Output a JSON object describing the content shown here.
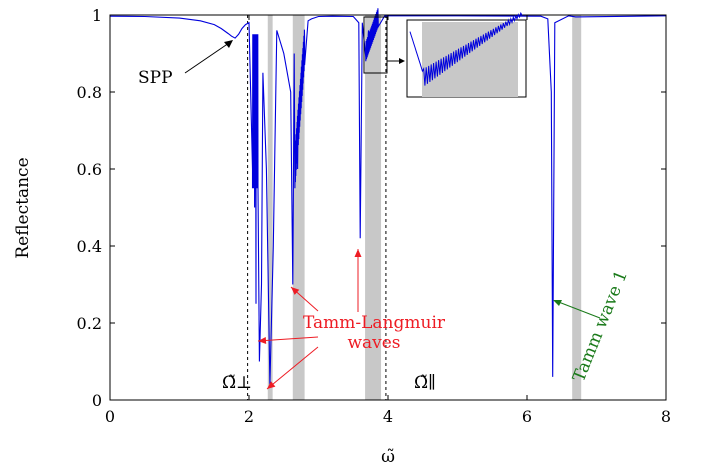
{
  "chart_data": {
    "type": "line",
    "xlabel": "ω̃",
    "ylabel": "Reflectance",
    "xlim": [
      0,
      8
    ],
    "ylim": [
      0,
      1
    ],
    "x_ticks": [
      "0",
      "2",
      "4",
      "6",
      "8"
    ],
    "y_ticks": [
      "0",
      "0.2",
      "0.4",
      "0.6",
      "0.8",
      "1"
    ],
    "grid": false,
    "line_color": "#0000dd",
    "band_color": "#c8c8c8",
    "gray_bands": [
      [
        2.27,
        2.34
      ],
      [
        2.63,
        2.8
      ],
      [
        3.67,
        3.9
      ],
      [
        6.65,
        6.78
      ]
    ],
    "dashed_lines": [
      {
        "x": 1.98,
        "label": "Ω̃⊥"
      },
      {
        "x": 3.97,
        "label": "Ω̃∥"
      }
    ],
    "series": [
      {
        "x": [
          0.0,
          0.5,
          1.0,
          1.3,
          1.5,
          1.6,
          1.7,
          1.75,
          1.8,
          1.85,
          1.9,
          1.95,
          2.0,
          2.05,
          2.08,
          2.1,
          2.15,
          2.18,
          2.2,
          2.25,
          2.3,
          2.35,
          2.4,
          2.5,
          2.6,
          2.63,
          2.65,
          2.7,
          2.8,
          2.85,
          2.9,
          3.0,
          3.2,
          3.5,
          3.58,
          3.6,
          3.63,
          3.68,
          3.72,
          3.8,
          3.85,
          3.95,
          4.0,
          5.0,
          6.2,
          6.3,
          6.35,
          6.37,
          6.4,
          6.6,
          6.7,
          8.0
        ],
        "y": [
          0.997,
          0.996,
          0.992,
          0.985,
          0.975,
          0.965,
          0.952,
          0.945,
          0.94,
          0.95,
          0.965,
          0.975,
          0.98,
          0.6,
          0.5,
          0.25,
          0.1,
          0.3,
          0.85,
          0.6,
          0.04,
          0.4,
          0.96,
          0.9,
          0.8,
          0.3,
          0.9,
          0.6,
          0.94,
          0.985,
          0.99,
          0.996,
          0.997,
          0.996,
          0.98,
          0.42,
          0.98,
          0.89,
          0.96,
          0.98,
          0.995,
          0.997,
          0.998,
          0.998,
          0.997,
          0.99,
          0.8,
          0.06,
          0.98,
          0.998,
          0.995,
          0.998
        ]
      }
    ],
    "annotations": [
      {
        "text": "SPP",
        "color": "#000000"
      },
      {
        "text": "Tamm-Langmuir",
        "color": "#ee1c24"
      },
      {
        "text": "waves",
        "color": "#ee1c24"
      },
      {
        "text": "Tamm wave 1",
        "color": "#1a7a1a"
      }
    ],
    "inset": {
      "x_range": [
        3.67,
        3.9
      ],
      "y_range": [
        0.89,
        0.98
      ]
    }
  }
}
